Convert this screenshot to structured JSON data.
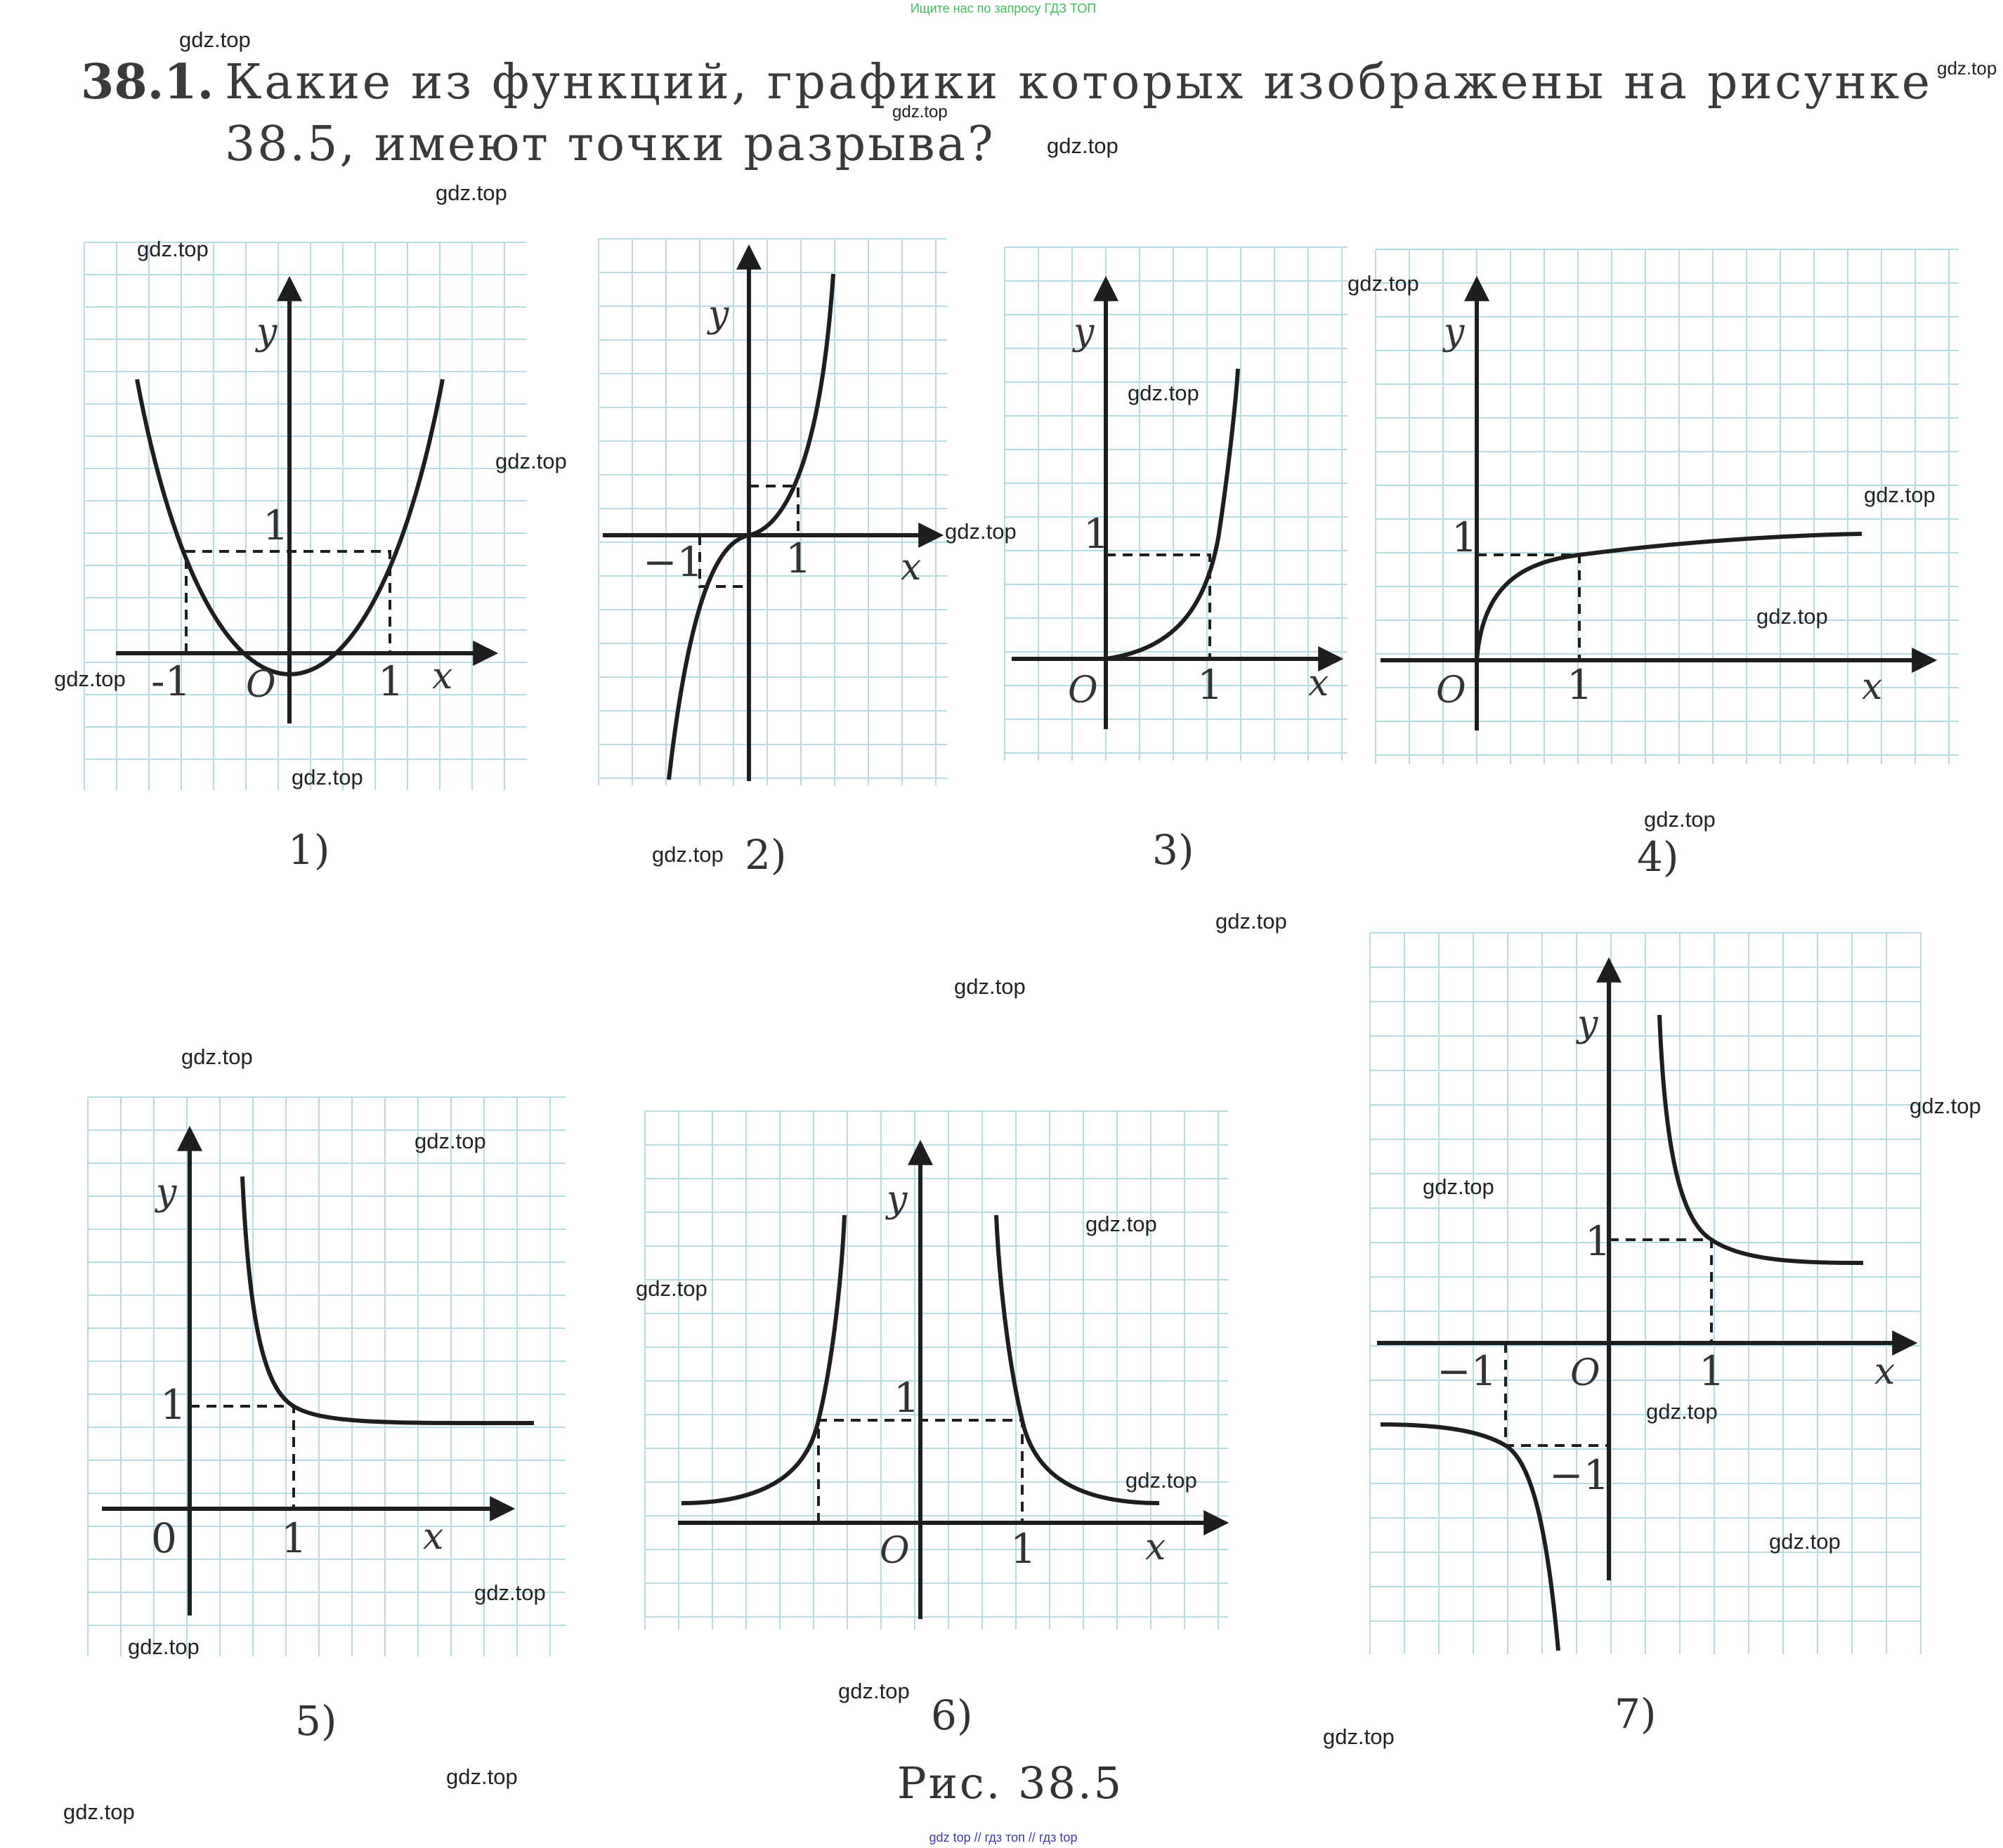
{
  "header": {
    "top_note": "Ищите нас по запросу ГДЗ ТОП",
    "footer_note": "gdz top  //  гдз топ  //  гдз top"
  },
  "problem": {
    "number": "38.1.",
    "text_line1": "Какие из функций, графики которых изображены на рисунке",
    "text_line2": "38.5, имеют точки разрыва?"
  },
  "watermark": "gdz.top",
  "figure_caption": "Рис. 38.5",
  "colors": {
    "grid": "#b6dce4",
    "ink": "#1e1e1e",
    "top_note": "#3fbf5a",
    "footer_note": "#3b3bb0"
  },
  "graphs": [
    {
      "label": "1)",
      "x_axis": "x",
      "y_axis": "y",
      "origin": "O",
      "ticks": {
        "x_neg": "-1",
        "x_pos": "1",
        "y_pos": "1"
      }
    },
    {
      "label": "2)",
      "x_axis": "x",
      "y_axis": "y",
      "origin": "",
      "ticks": {
        "x_neg": "−1",
        "x_pos": "1"
      }
    },
    {
      "label": "3)",
      "x_axis": "x",
      "y_axis": "y",
      "origin": "O",
      "ticks": {
        "x_pos": "1",
        "y_pos": "1"
      }
    },
    {
      "label": "4)",
      "x_axis": "x",
      "y_axis": "y",
      "origin": "O",
      "ticks": {
        "x_pos": "1",
        "y_pos": "1"
      }
    },
    {
      "label": "5)",
      "x_axis": "x",
      "y_axis": "y",
      "origin": "0",
      "ticks": {
        "x_pos": "1",
        "y_pos": "1"
      }
    },
    {
      "label": "6)",
      "x_axis": "x",
      "y_axis": "y",
      "origin": "O",
      "ticks": {
        "x_pos": "1",
        "y_pos": "1"
      }
    },
    {
      "label": "7)",
      "x_axis": "x",
      "y_axis": "y",
      "origin": "O",
      "ticks": {
        "x_neg": "−1",
        "x_pos": "1",
        "y_pos": "1",
        "y_neg": "−1"
      }
    }
  ]
}
